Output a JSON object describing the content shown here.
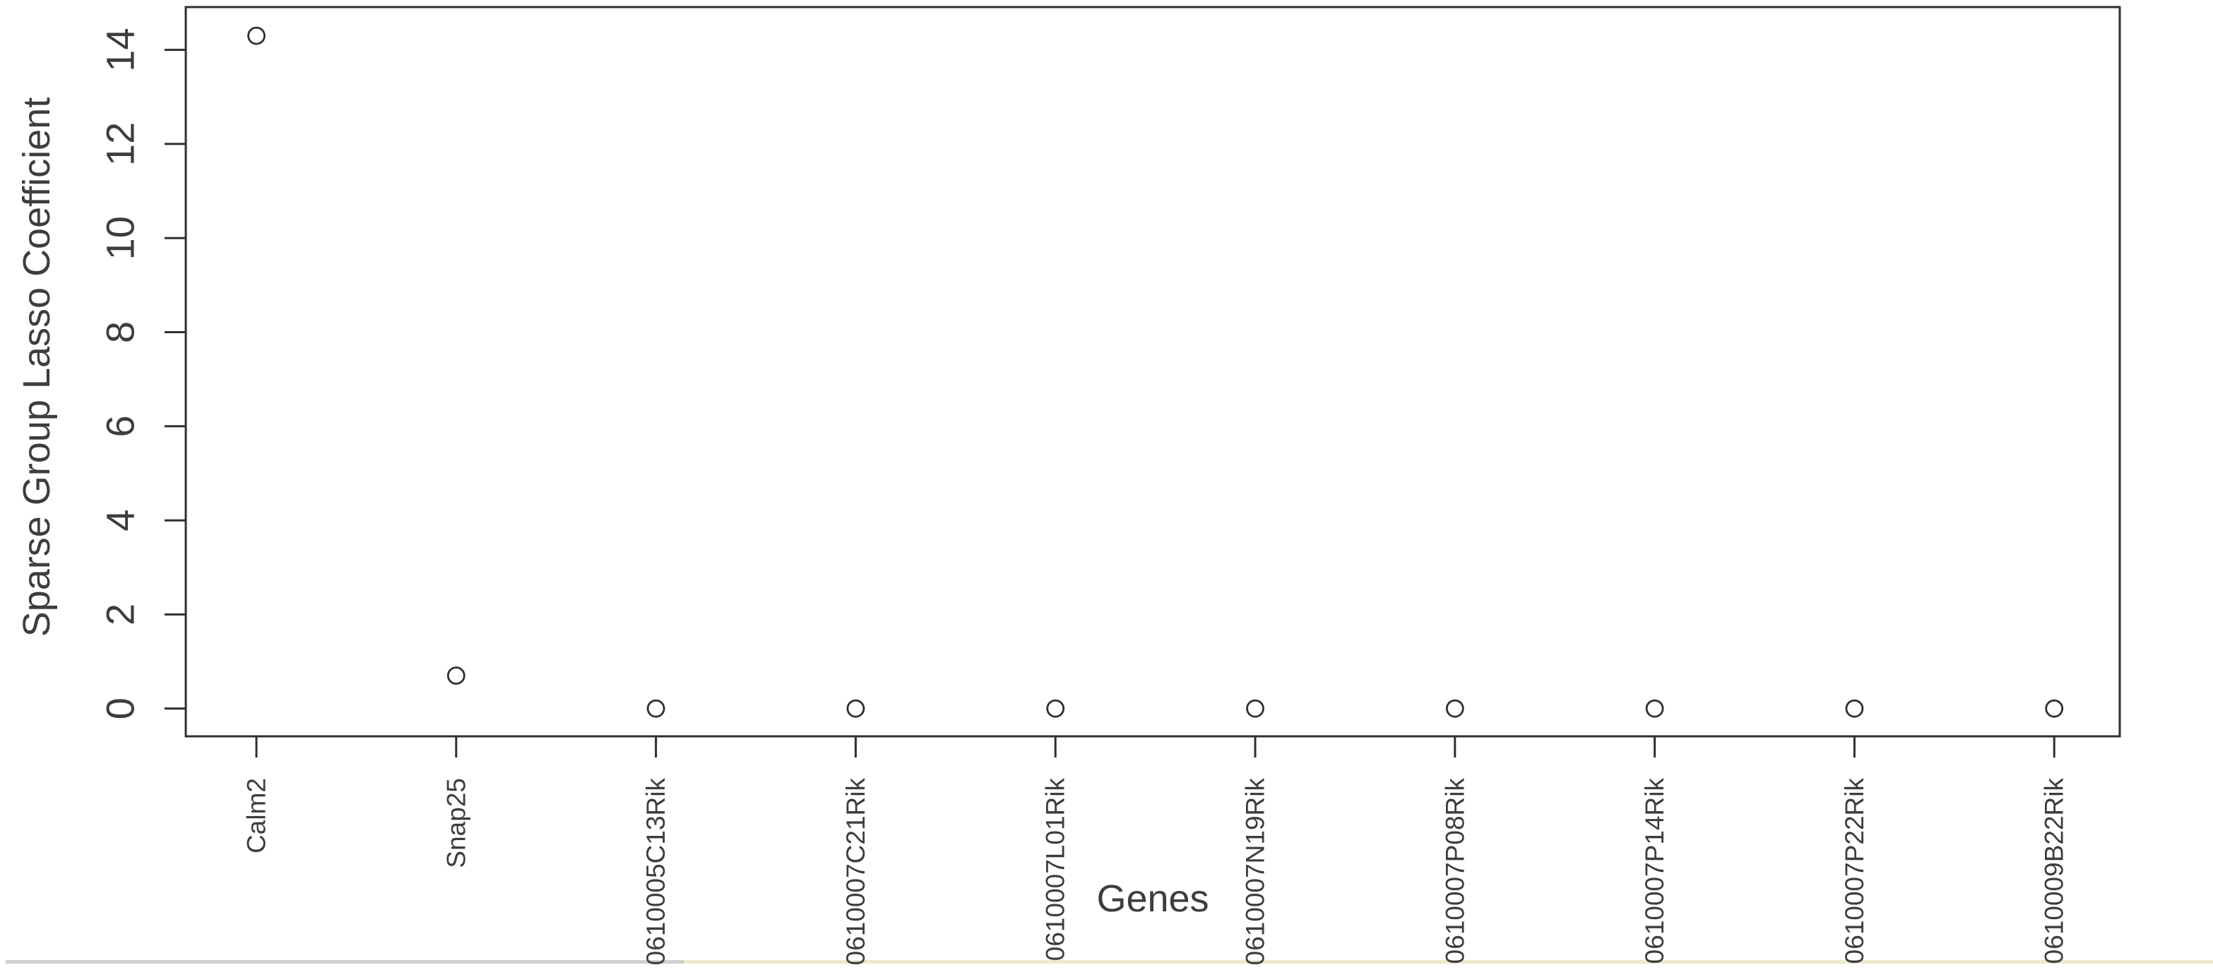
{
  "figure": {
    "background": "#ffffff",
    "ink": "#2f2f2f",
    "text_color": "#3d3d3d",
    "bottom_strip": {
      "left_color": "#cfcfcf",
      "right_color": "#ece8cd"
    }
  },
  "chart_data": {
    "type": "scatter",
    "title": "",
    "xlabel": "Genes",
    "ylabel": "Sparse Group Lasso Coefficient",
    "categories": [
      "Calm2",
      "Snap25",
      "0610005C13Rik",
      "0610007C21Rik",
      "0610007L01Rik",
      "0610007N19Rik",
      "0610007P08Rik",
      "0610007P14Rik",
      "0610007P22Rik",
      "0610009B22Rik"
    ],
    "values": [
      14.3,
      0.7,
      0,
      0,
      0,
      0,
      0,
      0,
      0,
      0
    ],
    "series": [
      {
        "name": "Sparse Group Lasso Coefficient",
        "values": [
          14.3,
          0.7,
          0,
          0,
          0,
          0,
          0,
          0,
          0,
          0
        ]
      }
    ],
    "y_ticks": [
      0,
      2,
      4,
      6,
      8,
      10,
      12,
      14
    ],
    "ylim": [
      -0.59,
      14.91
    ],
    "grid": false,
    "legend_position": "none",
    "marker": "open-circle",
    "x_tick_label_rotation": 90,
    "y_tick_label_rotation": 90
  }
}
